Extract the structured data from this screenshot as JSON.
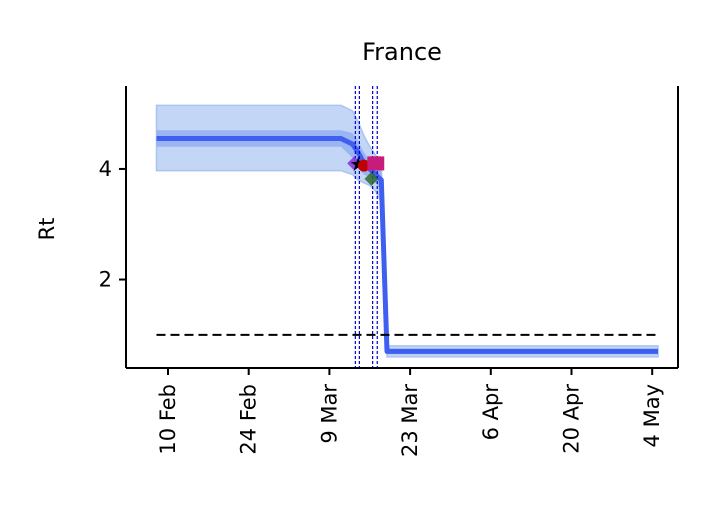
{
  "chart_data": {
    "type": "line",
    "title": "France",
    "ylabel": "Rt",
    "xlabel": "",
    "x_ticks": [
      "10 Feb",
      "24 Feb",
      "9 Mar",
      "23 Mar",
      "6 Apr",
      "20 Apr",
      "4 May"
    ],
    "y_ticks": [
      2,
      4
    ],
    "x_range_days": [
      -3.5,
      92
    ],
    "ylim": [
      0.4,
      5.5
    ],
    "grid": false,
    "colors": {
      "median_line": "#3f5ff0",
      "band_outer": "#aac4f2",
      "band_inner": "#7f9ef0",
      "reference_line": "#000000",
      "intervention_lines": "#0000cc"
    },
    "series": [
      {
        "x_days": [
          -2,
          30,
          32,
          33,
          34,
          35,
          36,
          37,
          38,
          39,
          40,
          41,
          42,
          44,
          50,
          60,
          70,
          80,
          85
        ],
        "median": [
          4.55,
          4.55,
          4.45,
          4.3,
          4.1,
          4.0,
          3.9,
          3.8,
          0.7,
          0.7,
          0.7,
          0.7,
          0.7,
          0.7,
          0.7,
          0.7,
          0.7,
          0.7,
          0.7
        ],
        "ci50_low": [
          4.4,
          4.4,
          4.2,
          4.0,
          3.9,
          3.85,
          3.75,
          3.6,
          0.65,
          0.65,
          0.65,
          0.65,
          0.65,
          0.65,
          0.65,
          0.65,
          0.65,
          0.65,
          0.65
        ],
        "ci50_high": [
          4.7,
          4.7,
          4.65,
          4.5,
          4.3,
          4.15,
          4.05,
          3.95,
          0.75,
          0.75,
          0.75,
          0.75,
          0.75,
          0.75,
          0.75,
          0.75,
          0.75,
          0.75,
          0.75
        ],
        "ci95_low": [
          3.97,
          3.97,
          3.9,
          3.8,
          3.75,
          3.7,
          3.6,
          3.4,
          0.6,
          0.6,
          0.6,
          0.6,
          0.6,
          0.6,
          0.6,
          0.6,
          0.6,
          0.6,
          0.6
        ],
        "ci95_high": [
          5.15,
          5.15,
          5.05,
          4.85,
          4.6,
          4.4,
          4.25,
          4.1,
          0.8,
          0.8,
          0.8,
          0.8,
          0.8,
          0.8,
          0.8,
          0.8,
          0.8,
          0.8,
          0.8
        ]
      }
    ],
    "reference_line": {
      "y": 1.0,
      "x_days_range": [
        -2,
        85
      ]
    },
    "intervention_dates_days": [
      32.5,
      33.2,
      35.5,
      36.3
    ],
    "markers": [
      {
        "x_days": 32.3,
        "y": 4.1,
        "shape": "diamond",
        "color": "#8a2be2"
      },
      {
        "x_days": 33.0,
        "y": 4.08,
        "shape": "star",
        "color": "#000000"
      },
      {
        "x_days": 34.0,
        "y": 4.06,
        "shape": "circle",
        "color": "#c00000"
      },
      {
        "x_days": 35.3,
        "y": 3.82,
        "shape": "diamond",
        "color": "#2e6b2e"
      },
      {
        "x_days": 35.8,
        "y": 4.1,
        "shape": "square",
        "color": "#c81c7a"
      },
      {
        "x_days": 36.3,
        "y": 4.1,
        "shape": "square",
        "color": "#c81c7a"
      }
    ]
  }
}
